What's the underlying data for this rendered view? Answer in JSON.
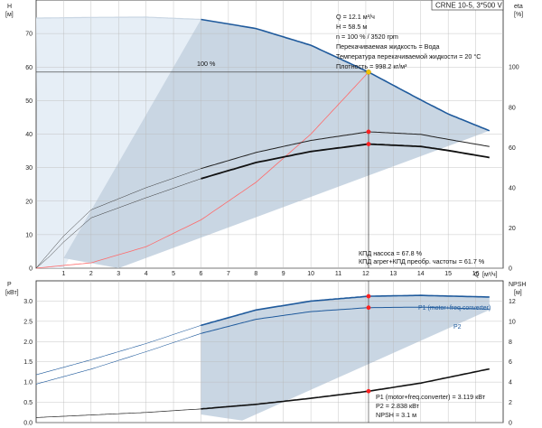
{
  "model_label": "CRNE 10-5, 3*500 V",
  "colors": {
    "band": "#c9d6e3",
    "band_light": "#e6eef6",
    "hcurve": "#1f5a9c",
    "system_curve": "#ff6a6a",
    "op_point": "#f2c200",
    "marker": "#ff2020",
    "grid": "#b8b8b8",
    "frame": "#222222"
  },
  "top_info": [
    "Q = 12.1 м³/ч",
    "H = 58.5 м",
    "n = 100 % / 3520 rpm",
    "Перекачиваемая жидкость = Вода",
    "Температура перекачиваемой жидкости = 20 °C",
    "Плотность = 998.2 кг/м³"
  ],
  "eff_info": [
    "КПД насоса = 67.8 %",
    "КПД агрег+КПД преобр. частоты = 61.7 %"
  ],
  "bottom_info": [
    "P1 (motor+freq.converter) = 3.119 кВт",
    "P2 = 2.838 кВт",
    "NPSH = 3.1 м"
  ],
  "chart_data": [
    {
      "type": "line",
      "ylabel_left": "H",
      "yunit_left": "[м]",
      "ylabel_right": "eta",
      "yunit_right": "[%]",
      "xlabel": "Q",
      "xunit": "[м³/ч]",
      "xlim": [
        0,
        17
      ],
      "ylim_left": [
        0,
        80
      ],
      "ylim_right_ticks": [
        0,
        20,
        40,
        60,
        80,
        100
      ],
      "x_ticks": [
        1,
        2,
        3,
        4,
        5,
        6,
        7,
        8,
        9,
        10,
        11,
        12,
        13,
        14,
        15,
        16
      ],
      "y_ticks_left": [
        0,
        10,
        20,
        30,
        40,
        50,
        60,
        70
      ],
      "curve_label": "100 %",
      "series": [
        {
          "name": "H",
          "x": [
            0,
            2,
            4,
            6,
            8,
            10,
            12.1,
            14,
            15,
            16.5
          ],
          "y": [
            74.6,
            74.8,
            74.9,
            74.2,
            71.5,
            66.5,
            58.5,
            50.2,
            46.0,
            41.0
          ]
        },
        {
          "name": "КПД насоса",
          "x": [
            2,
            4,
            6,
            8,
            10,
            12.1,
            14,
            15,
            16.5
          ],
          "y": [
            29.0,
            40.0,
            49.5,
            57.5,
            63.5,
            67.8,
            66.5,
            64.0,
            60.5
          ]
        },
        {
          "name": "КПД агрег+КПД преобр. частоты",
          "x": [
            2,
            4,
            6,
            8,
            10,
            12.1,
            14,
            15,
            16.5
          ],
          "y": [
            25.0,
            35.0,
            44.5,
            52.5,
            58.0,
            61.7,
            60.5,
            58.5,
            55.0
          ]
        },
        {
          "name": "system",
          "x": [
            0,
            2,
            4,
            6,
            8,
            10,
            12.1
          ],
          "y": [
            0,
            1.6,
            6.4,
            14.4,
            25.6,
            40.0,
            58.5
          ]
        }
      ],
      "operating_point": {
        "q": 12.1,
        "h": 58.5,
        "eta_pump": 67.8,
        "eta_total": 61.7
      }
    },
    {
      "type": "line",
      "ylabel_left": "P",
      "yunit_left": "[кВт]",
      "ylabel_right": "NPSH",
      "yunit_right": "[м]",
      "xlim": [
        0,
        17
      ],
      "ylim_left": [
        0,
        3.5
      ],
      "y_ticks_left": [
        0.0,
        0.5,
        1.0,
        1.5,
        2.0,
        2.5,
        3.0
      ],
      "y_ticks_right": [
        0,
        2,
        4,
        6,
        8,
        10,
        12
      ],
      "series": [
        {
          "name": "P1 (motor+freq.converter)",
          "x": [
            0,
            2,
            4,
            6,
            8,
            10,
            12.1,
            14,
            16.5
          ],
          "y": [
            1.18,
            1.55,
            1.95,
            2.4,
            2.78,
            3.0,
            3.119,
            3.14,
            3.1
          ]
        },
        {
          "name": "P2",
          "x": [
            0,
            2,
            4,
            6,
            8,
            10,
            12.1,
            14,
            16.5
          ],
          "y": [
            0.95,
            1.32,
            1.75,
            2.2,
            2.55,
            2.74,
            2.838,
            2.85,
            2.8
          ]
        },
        {
          "name": "NPSH",
          "x": [
            0,
            2,
            4,
            6,
            8,
            10,
            12.1,
            14,
            16.5
          ],
          "y": [
            0.5,
            0.75,
            1.0,
            1.35,
            1.8,
            2.4,
            3.1,
            3.9,
            5.3
          ]
        }
      ],
      "operating_point": {
        "q": 12.1,
        "p1": 3.119,
        "p2": 2.838,
        "npsh": 3.1
      }
    }
  ]
}
